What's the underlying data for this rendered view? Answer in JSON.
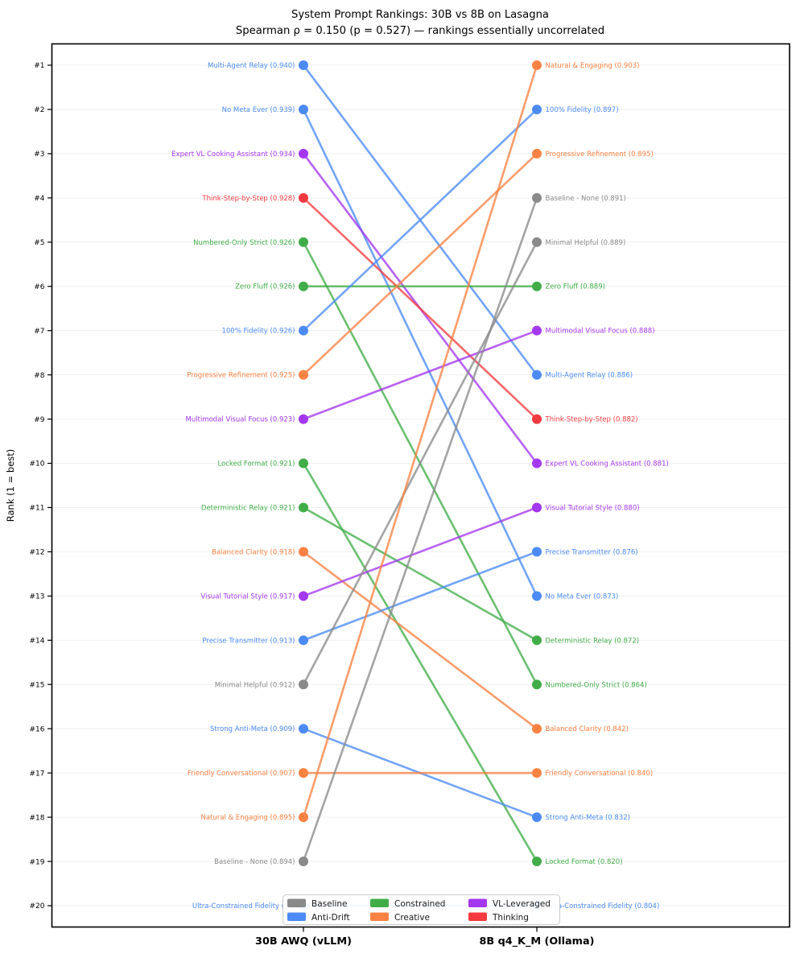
{
  "chart_data": {
    "type": "slope",
    "title": "System Prompt Rankings: 30B vs 8B on Lasagna",
    "subtitle": "Spearman ρ = 0.150 (p = 0.527) — rankings essentially uncorrelated",
    "ylabel": "Rank (1 = best)",
    "columns": [
      "30B AWQ (vLLM)",
      "8B q4_K_M (Ollama)"
    ],
    "stats": {
      "spearman_rho": "0.150",
      "p_value": "0.527"
    },
    "rank_ticks": [
      "#1",
      "#2",
      "#3",
      "#4",
      "#5",
      "#6",
      "#7",
      "#8",
      "#9",
      "#10",
      "#11",
      "#12",
      "#13",
      "#14",
      "#15",
      "#16",
      "#17",
      "#18",
      "#19",
      "#20"
    ],
    "ylim": [
      1,
      20
    ],
    "grid": true,
    "legend_position": "lower center",
    "categories": {
      "Baseline": "#8a8a8a",
      "Anti-Drift": "#4c8bf5",
      "Constrained": "#41ad49",
      "Creative": "#fa8243",
      "VL-Leveraged": "#a437f0",
      "Thinking": "#f53b40"
    },
    "legend_columns": [
      [
        "Baseline",
        "Anti-Drift"
      ],
      [
        "Constrained",
        "Creative"
      ],
      [
        "VL-Leveraged",
        "Thinking"
      ]
    ],
    "series": [
      {
        "name": "Multi-Agent Relay",
        "category": "Anti-Drift",
        "left": {
          "rank": 1,
          "score": "0.940",
          "label": "Multi-Agent Relay (0.940)"
        },
        "right": {
          "rank": 8,
          "score": "0.886",
          "label": "Multi-Agent Relay (0.886)"
        }
      },
      {
        "name": "No Meta Ever",
        "category": "Anti-Drift",
        "left": {
          "rank": 2,
          "score": "0.939",
          "label": "No Meta Ever (0.939)"
        },
        "right": {
          "rank": 13,
          "score": "0.873",
          "label": "No Meta Ever (0.873)"
        }
      },
      {
        "name": "Expert VL Cooking Assistant",
        "category": "VL-Leveraged",
        "left": {
          "rank": 3,
          "score": "0.934",
          "label": "Expert VL Cooking Assistant (0.934)"
        },
        "right": {
          "rank": 10,
          "score": "0.881",
          "label": "Expert VL Cooking Assistant (0.881)"
        }
      },
      {
        "name": "Think-Step-by-Step",
        "category": "Thinking",
        "left": {
          "rank": 4,
          "score": "0.928",
          "label": "Think-Step-by-Step (0.928)"
        },
        "right": {
          "rank": 9,
          "score": "0.882",
          "label": "Think-Step-by-Step (0.882)"
        }
      },
      {
        "name": "Numbered-Only Strict",
        "category": "Constrained",
        "left": {
          "rank": 5,
          "score": "0.926",
          "label": "Numbered-Only Strict (0.926)"
        },
        "right": {
          "rank": 15,
          "score": "0.864",
          "label": "Numbered-Only Strict (0.864)"
        }
      },
      {
        "name": "Zero Fluff",
        "category": "Constrained",
        "left": {
          "rank": 6,
          "score": "0.926",
          "label": "Zero Fluff (0.926)"
        },
        "right": {
          "rank": 6,
          "score": "0.889",
          "label": "Zero Fluff (0.889)"
        }
      },
      {
        "name": "100% Fidelity",
        "category": "Anti-Drift",
        "left": {
          "rank": 7,
          "score": "0.926",
          "label": "100% Fidelity (0.926)"
        },
        "right": {
          "rank": 2,
          "score": "0.897",
          "label": "100% Fidelity (0.897)"
        }
      },
      {
        "name": "Progressive Refinement",
        "category": "Creative",
        "left": {
          "rank": 8,
          "score": "0.925",
          "label": "Progressive Refinement (0.925)"
        },
        "right": {
          "rank": 3,
          "score": "0.895",
          "label": "Progressive Refinement (0.895)"
        }
      },
      {
        "name": "Multimodal Visual Focus",
        "category": "VL-Leveraged",
        "left": {
          "rank": 9,
          "score": "0.923",
          "label": "Multimodal Visual Focus (0.923)"
        },
        "right": {
          "rank": 7,
          "score": "0.888",
          "label": "Multimodal Visual Focus (0.888)"
        }
      },
      {
        "name": "Locked Format",
        "category": "Constrained",
        "left": {
          "rank": 10,
          "score": "0.921",
          "label": "Locked Format (0.921)"
        },
        "right": {
          "rank": 19,
          "score": "0.820",
          "label": "Locked Format (0.820)"
        }
      },
      {
        "name": "Deterministic Relay",
        "category": "Constrained",
        "left": {
          "rank": 11,
          "score": "0.921",
          "label": "Deterministic Relay (0.921)"
        },
        "right": {
          "rank": 14,
          "score": "0.872",
          "label": "Deterministic Relay (0.872)"
        }
      },
      {
        "name": "Balanced Clarity",
        "category": "Creative",
        "left": {
          "rank": 12,
          "score": "0.918",
          "label": "Balanced Clarity (0.918)"
        },
        "right": {
          "rank": 16,
          "score": "0.842",
          "label": "Balanced Clarity (0.842)"
        }
      },
      {
        "name": "Visual Tutorial Style",
        "category": "VL-Leveraged",
        "left": {
          "rank": 13,
          "score": "0.917",
          "label": "Visual Tutorial Style (0.917)"
        },
        "right": {
          "rank": 11,
          "score": "0.880",
          "label": "Visual Tutorial Style (0.880)"
        }
      },
      {
        "name": "Precise Transmitter",
        "category": "Anti-Drift",
        "left": {
          "rank": 14,
          "score": "0.913",
          "label": "Precise Transmitter (0.913)"
        },
        "right": {
          "rank": 12,
          "score": "0.876",
          "label": "Precise Transmitter (0.876)"
        }
      },
      {
        "name": "Minimal Helpful",
        "category": "Baseline",
        "left": {
          "rank": 15,
          "score": "0.912",
          "label": "Minimal Helpful (0.912)"
        },
        "right": {
          "rank": 5,
          "score": "0.889",
          "label": "Minimal Helpful (0.889)"
        }
      },
      {
        "name": "Strong Anti-Meta",
        "category": "Anti-Drift",
        "left": {
          "rank": 16,
          "score": "0.909",
          "label": "Strong Anti-Meta (0.909)"
        },
        "right": {
          "rank": 18,
          "score": "0.832",
          "label": "Strong Anti-Meta (0.832)"
        }
      },
      {
        "name": "Friendly Conversational",
        "category": "Creative",
        "left": {
          "rank": 17,
          "score": "0.907",
          "label": "Friendly Conversational (0.907)"
        },
        "right": {
          "rank": 17,
          "score": "0.840",
          "label": "Friendly Conversational (0.840)"
        }
      },
      {
        "name": "Natural & Engaging",
        "category": "Creative",
        "left": {
          "rank": 18,
          "score": "0.895",
          "label": "Natural & Engaging (0.895)"
        },
        "right": {
          "rank": 1,
          "score": "0.903",
          "label": "Natural & Engaging (0.903)"
        }
      },
      {
        "name": "Baseline - None",
        "category": "Baseline",
        "left": {
          "rank": 19,
          "score": "0.894",
          "label": "Baseline - None (0.894)"
        },
        "right": {
          "rank": 4,
          "score": "0.891",
          "label": "Baseline - None (0.891)"
        }
      },
      {
        "name": "Ultra-Constrained Fidelity",
        "category": "Anti-Drift",
        "left": {
          "rank": 20,
          "score": "0.8",
          "label": "Ultra-Constrained Fidelity (0.8"
        },
        "right": {
          "rank": 20,
          "score": "0.804",
          "label": "Ultra-Constrained Fidelity (0.804)"
        }
      }
    ]
  }
}
